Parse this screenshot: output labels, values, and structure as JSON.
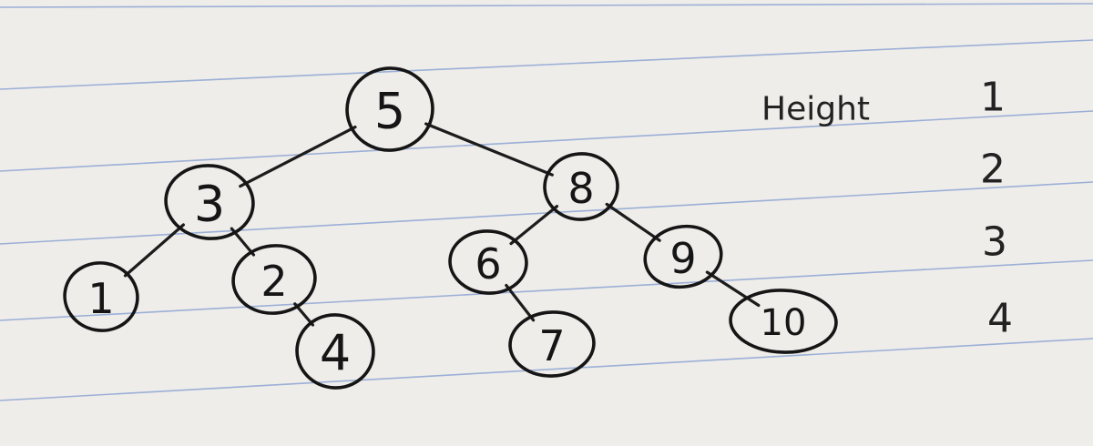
{
  "height_label": "Height",
  "levels": [
    "1",
    "2",
    "3",
    "4"
  ],
  "colors": {
    "ink": "#151515",
    "paper": "#efedea",
    "rule_line": "#7f9bd0"
  },
  "tree": {
    "nodes": [
      {
        "id": "n5",
        "label": "5"
      },
      {
        "id": "n3",
        "label": "3"
      },
      {
        "id": "n8",
        "label": "8"
      },
      {
        "id": "n1",
        "label": "1"
      },
      {
        "id": "n2",
        "label": "2"
      },
      {
        "id": "n6",
        "label": "6"
      },
      {
        "id": "n9",
        "label": "9"
      },
      {
        "id": "n4",
        "label": "4"
      },
      {
        "id": "n7",
        "label": "7"
      },
      {
        "id": "n10",
        "label": "10"
      }
    ],
    "edges": [
      [
        "n5",
        "n3"
      ],
      [
        "n5",
        "n8"
      ],
      [
        "n3",
        "n1"
      ],
      [
        "n3",
        "n2"
      ],
      [
        "n2",
        "n4"
      ],
      [
        "n8",
        "n6"
      ],
      [
        "n8",
        "n9"
      ],
      [
        "n6",
        "n7"
      ],
      [
        "n9",
        "n10"
      ]
    ]
  }
}
